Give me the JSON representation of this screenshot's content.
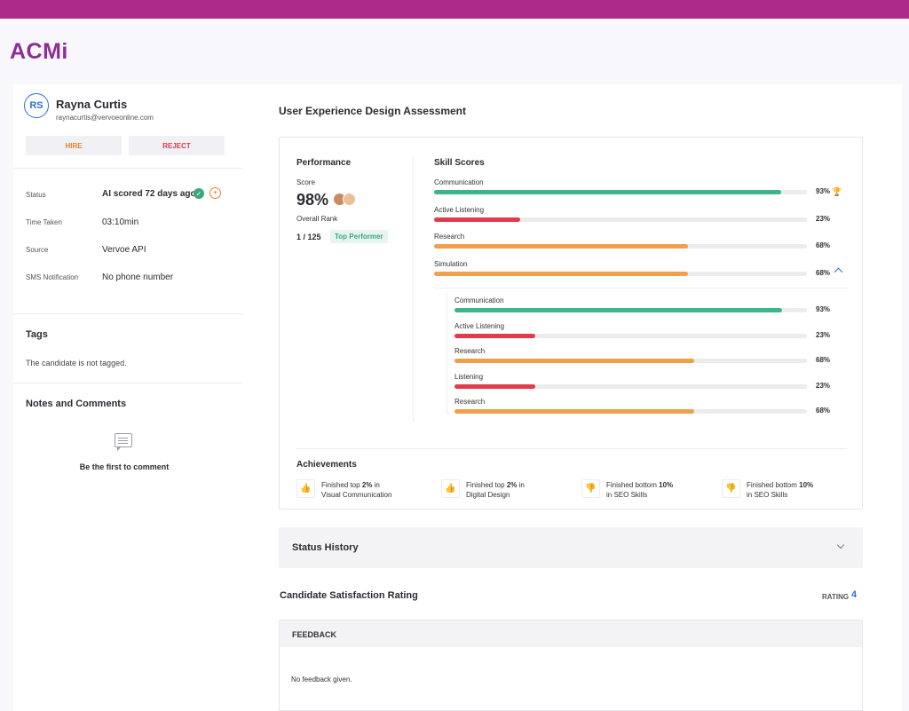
{
  "brand": {
    "logo": "ACMi",
    "topbar_color": "#ab2a8a",
    "logo_color": "#8e2d99"
  },
  "candidate": {
    "initials": "RS",
    "name": "Rayna Curtis",
    "email": "raynacurtis@vervoeonline.com",
    "hire_label": "HIRE",
    "reject_label": "REJECT"
  },
  "info": [
    {
      "label": "Status",
      "value": "AI scored 72 days ago"
    },
    {
      "label": "Time Taken",
      "value": "03:10min"
    },
    {
      "label": "Source",
      "value": "Vervoe API"
    },
    {
      "label": "SMS Notification",
      "value": "No phone number"
    }
  ],
  "tags": {
    "title": "Tags",
    "text": "The candidate is not tagged."
  },
  "notes": {
    "title": "Notes and Comments",
    "empty_text": "Be the first to comment"
  },
  "assessment": {
    "title": "User Experience Design Assessment",
    "performance": {
      "title": "Performance",
      "score_label": "Score",
      "score": "98%",
      "rank_label": "Overall Rank",
      "rank": "1 / 125",
      "badge": "Top Performer"
    },
    "skills_title": "Skill Scores",
    "skills": [
      {
        "name": "Communication",
        "value": 93,
        "label": "93%",
        "color": "#3fb38a"
      },
      {
        "name": "Active Listening",
        "value": 23,
        "label": "23%",
        "color": "#e23b4b"
      },
      {
        "name": "Research",
        "value": 68,
        "label": "68%",
        "color": "#f0a04b"
      },
      {
        "name": "Simulation",
        "value": 68,
        "label": "68%",
        "color": "#f0a04b"
      }
    ],
    "sub_skills": [
      {
        "name": "Communication",
        "value": 93,
        "label": "93%",
        "color": "#3fb38a"
      },
      {
        "name": "Active Listening",
        "value": 23,
        "label": "23%",
        "color": "#e23b4b"
      },
      {
        "name": "Research",
        "value": 68,
        "label": "68%",
        "color": "#f0a04b"
      },
      {
        "name": "Listening",
        "value": 23,
        "label": "23%",
        "color": "#e23b4b"
      },
      {
        "name": "Research",
        "value": 68,
        "label": "68%",
        "color": "#f0a04b"
      }
    ],
    "achievements_title": "Achievements",
    "achievements": [
      {
        "type": "up",
        "pre": "Finished top ",
        "bold": "2%",
        "post": " in",
        "line2": "Visual Communication"
      },
      {
        "type": "up",
        "pre": "Finished top ",
        "bold": "2%",
        "post": " in",
        "line2": "Digital Design"
      },
      {
        "type": "down",
        "pre": "Finished bottom ",
        "bold": "10%",
        "post": "",
        "line2": "in SEO Skills"
      },
      {
        "type": "down",
        "pre": "Finished bottom ",
        "bold": "10%",
        "post": "",
        "line2": "in SEO Skills"
      }
    ]
  },
  "status_history": {
    "title": "Status History"
  },
  "satisfaction": {
    "title": "Candidate Satisfaction Rating",
    "rating_label": "RATING",
    "rating_value": "4",
    "feedback_title": "FEEDBACK",
    "feedback_text": "No feedback given."
  }
}
